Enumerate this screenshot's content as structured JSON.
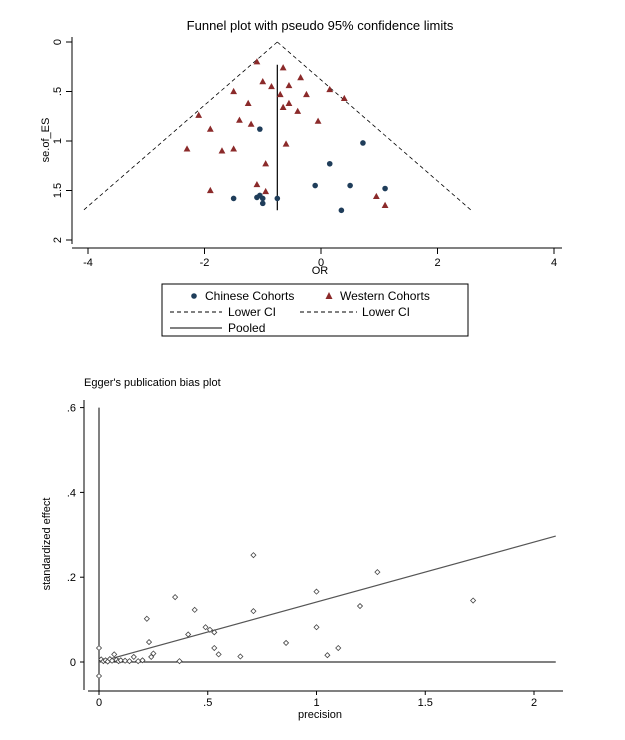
{
  "chart_data": [
    {
      "type": "scatter",
      "title": "Funnel plot with pseudo 95% confidence limits",
      "xlabel": "OR",
      "ylabel": "se.of_ES",
      "xlim": [
        -4.2,
        4.2
      ],
      "ylim": [
        2,
        0
      ],
      "y_reversed": true,
      "x_ticks": [
        "-4",
        "-2",
        "0",
        "2",
        "4"
      ],
      "x_tick_values": [
        -4,
        -2,
        0,
        2,
        4
      ],
      "y_ticks": [
        "0",
        ".5",
        "1",
        "1.5",
        "2"
      ],
      "y_tick_values": [
        0,
        0.5,
        1,
        1.5,
        2
      ],
      "pooled_estimate": -0.75,
      "pseudo_ci": {
        "se_max": 1.7,
        "lower_x_at_se_max": -4.08,
        "upper_x_at_se_max": 2.58
      },
      "legend": {
        "chinese_label": "Chinese Cohorts",
        "western_label": "Western Cohorts",
        "lower_ci_label_1": "Lower CI",
        "lower_ci_label_2": "Lower CI",
        "pooled_label": "Pooled"
      },
      "series": [
        {
          "name": "Chinese Cohorts",
          "marker": "circle",
          "color": "#1f3d5a",
          "points": [
            {
              "x": -1.05,
              "y": 0.88
            },
            {
              "x": 0.15,
              "y": 1.23
            },
            {
              "x": 0.72,
              "y": 1.02
            },
            {
              "x": -0.1,
              "y": 1.45
            },
            {
              "x": 0.5,
              "y": 1.45
            },
            {
              "x": 1.1,
              "y": 1.48
            },
            {
              "x": -1.5,
              "y": 1.58
            },
            {
              "x": -1.1,
              "y": 1.57
            },
            {
              "x": -1.05,
              "y": 1.55
            },
            {
              "x": -1.0,
              "y": 1.58
            },
            {
              "x": -1.0,
              "y": 1.63
            },
            {
              "x": -0.75,
              "y": 1.58
            },
            {
              "x": 0.35,
              "y": 1.7
            }
          ]
        },
        {
          "name": "Western Cohorts",
          "marker": "triangle",
          "color": "#8b2a2a",
          "points": [
            {
              "x": -1.1,
              "y": 0.2
            },
            {
              "x": -0.65,
              "y": 0.26
            },
            {
              "x": -0.35,
              "y": 0.36
            },
            {
              "x": -1.0,
              "y": 0.4
            },
            {
              "x": -0.85,
              "y": 0.45
            },
            {
              "x": -0.55,
              "y": 0.44
            },
            {
              "x": 0.15,
              "y": 0.48
            },
            {
              "x": -1.5,
              "y": 0.5
            },
            {
              "x": -0.7,
              "y": 0.53
            },
            {
              "x": -0.25,
              "y": 0.53
            },
            {
              "x": 0.4,
              "y": 0.57
            },
            {
              "x": -1.25,
              "y": 0.62
            },
            {
              "x": -0.55,
              "y": 0.62
            },
            {
              "x": -0.65,
              "y": 0.66
            },
            {
              "x": -0.4,
              "y": 0.7
            },
            {
              "x": -2.1,
              "y": 0.74
            },
            {
              "x": -1.4,
              "y": 0.79
            },
            {
              "x": -0.05,
              "y": 0.8
            },
            {
              "x": -1.2,
              "y": 0.83
            },
            {
              "x": -1.9,
              "y": 0.88
            },
            {
              "x": -0.6,
              "y": 1.03
            },
            {
              "x": -2.3,
              "y": 1.08
            },
            {
              "x": -1.5,
              "y": 1.08
            },
            {
              "x": -1.7,
              "y": 1.1
            },
            {
              "x": -0.95,
              "y": 1.23
            },
            {
              "x": -1.1,
              "y": 1.44
            },
            {
              "x": -1.9,
              "y": 1.5
            },
            {
              "x": -0.95,
              "y": 1.51
            },
            {
              "x": 0.95,
              "y": 1.56
            },
            {
              "x": 1.1,
              "y": 1.65
            }
          ]
        }
      ]
    },
    {
      "type": "scatter",
      "title": "Egger's publication bias plot",
      "xlabel": "precision",
      "ylabel": "standardized effect",
      "xlim": [
        0,
        2.1
      ],
      "ylim": [
        -0.07,
        0.6
      ],
      "x_ticks": [
        "0",
        ".5",
        "1",
        "1.5",
        "2"
      ],
      "x_tick_values": [
        0,
        0.5,
        1,
        1.5,
        2
      ],
      "y_ticks": [
        "0",
        ".2",
        ".4",
        ".6"
      ],
      "y_tick_values": [
        0,
        0.2,
        0.4,
        0.6
      ],
      "regression_line": {
        "x": [
          0,
          2.1
        ],
        "y": [
          0.0,
          0.297
        ]
      },
      "points": [
        {
          "x": 0.0,
          "y": 0.033
        },
        {
          "x": 0.0,
          "y": -0.033
        },
        {
          "x": 0.01,
          "y": 0.006
        },
        {
          "x": 0.02,
          "y": 0.002
        },
        {
          "x": 0.03,
          "y": 0.004
        },
        {
          "x": 0.04,
          "y": 0.001
        },
        {
          "x": 0.05,
          "y": 0.007
        },
        {
          "x": 0.06,
          "y": 0.003
        },
        {
          "x": 0.07,
          "y": 0.018
        },
        {
          "x": 0.08,
          "y": 0.005
        },
        {
          "x": 0.09,
          "y": 0.002
        },
        {
          "x": 0.1,
          "y": 0.004
        },
        {
          "x": 0.12,
          "y": 0.003
        },
        {
          "x": 0.14,
          "y": 0.002
        },
        {
          "x": 0.16,
          "y": 0.012
        },
        {
          "x": 0.18,
          "y": 0.002
        },
        {
          "x": 0.2,
          "y": 0.004
        },
        {
          "x": 0.22,
          "y": 0.102
        },
        {
          "x": 0.23,
          "y": 0.047
        },
        {
          "x": 0.24,
          "y": 0.012
        },
        {
          "x": 0.25,
          "y": 0.02
        },
        {
          "x": 0.35,
          "y": 0.153
        },
        {
          "x": 0.37,
          "y": 0.002
        },
        {
          "x": 0.41,
          "y": 0.065
        },
        {
          "x": 0.44,
          "y": 0.123
        },
        {
          "x": 0.49,
          "y": 0.082
        },
        {
          "x": 0.51,
          "y": 0.076
        },
        {
          "x": 0.53,
          "y": 0.07
        },
        {
          "x": 0.53,
          "y": 0.033
        },
        {
          "x": 0.55,
          "y": 0.018
        },
        {
          "x": 0.65,
          "y": 0.013
        },
        {
          "x": 0.71,
          "y": 0.252
        },
        {
          "x": 0.71,
          "y": 0.12
        },
        {
          "x": 0.86,
          "y": 0.045
        },
        {
          "x": 1.0,
          "y": 0.166
        },
        {
          "x": 1.0,
          "y": 0.082
        },
        {
          "x": 1.05,
          "y": 0.016
        },
        {
          "x": 1.1,
          "y": 0.033
        },
        {
          "x": 1.2,
          "y": 0.132
        },
        {
          "x": 1.28,
          "y": 0.212
        },
        {
          "x": 1.72,
          "y": 0.145
        }
      ]
    }
  ]
}
